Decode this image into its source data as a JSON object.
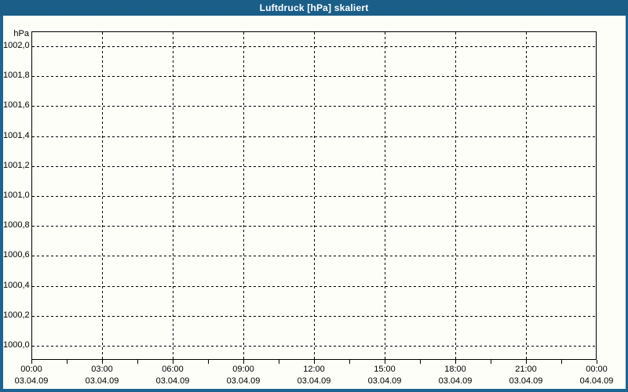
{
  "window": {
    "title": "Luftdruck [hPa] skaliert",
    "titlebar_color": "#1e6492",
    "titlebar_dither_color": "#17597f",
    "border_color": "#1e6492",
    "canvas_color": "#fdfef8",
    "grid_color": "#000000",
    "text_color": "#000000",
    "title_text_color": "#ffffff"
  },
  "chart_data": {
    "type": "line",
    "title": "Luftdruck [hPa] skaliert",
    "ylabel": "hPa",
    "xlabel": "",
    "ylim": [
      1000.0,
      1002.0
    ],
    "y_tick_step": 0.2,
    "y_tick_labels": [
      "1002,0",
      "1001,8",
      "1001,6",
      "1001,4",
      "1001,2",
      "1001,0",
      "1000,8",
      "1000,6",
      "1000,4",
      "1000,2",
      "1000,0"
    ],
    "x_tick_times": [
      "00:00",
      "03:00",
      "06:00",
      "09:00",
      "12:00",
      "15:00",
      "18:00",
      "21:00",
      "00:00"
    ],
    "x_tick_dates": [
      "03.04.09",
      "03.04.09",
      "03.04.09",
      "03.04.09",
      "03.04.09",
      "03.04.09",
      "03.04.09",
      "03.04.09",
      "04.04.09"
    ],
    "x_minor_ticks_between_majors": 1,
    "grid": "dashed",
    "legend_position": "none",
    "series": []
  }
}
